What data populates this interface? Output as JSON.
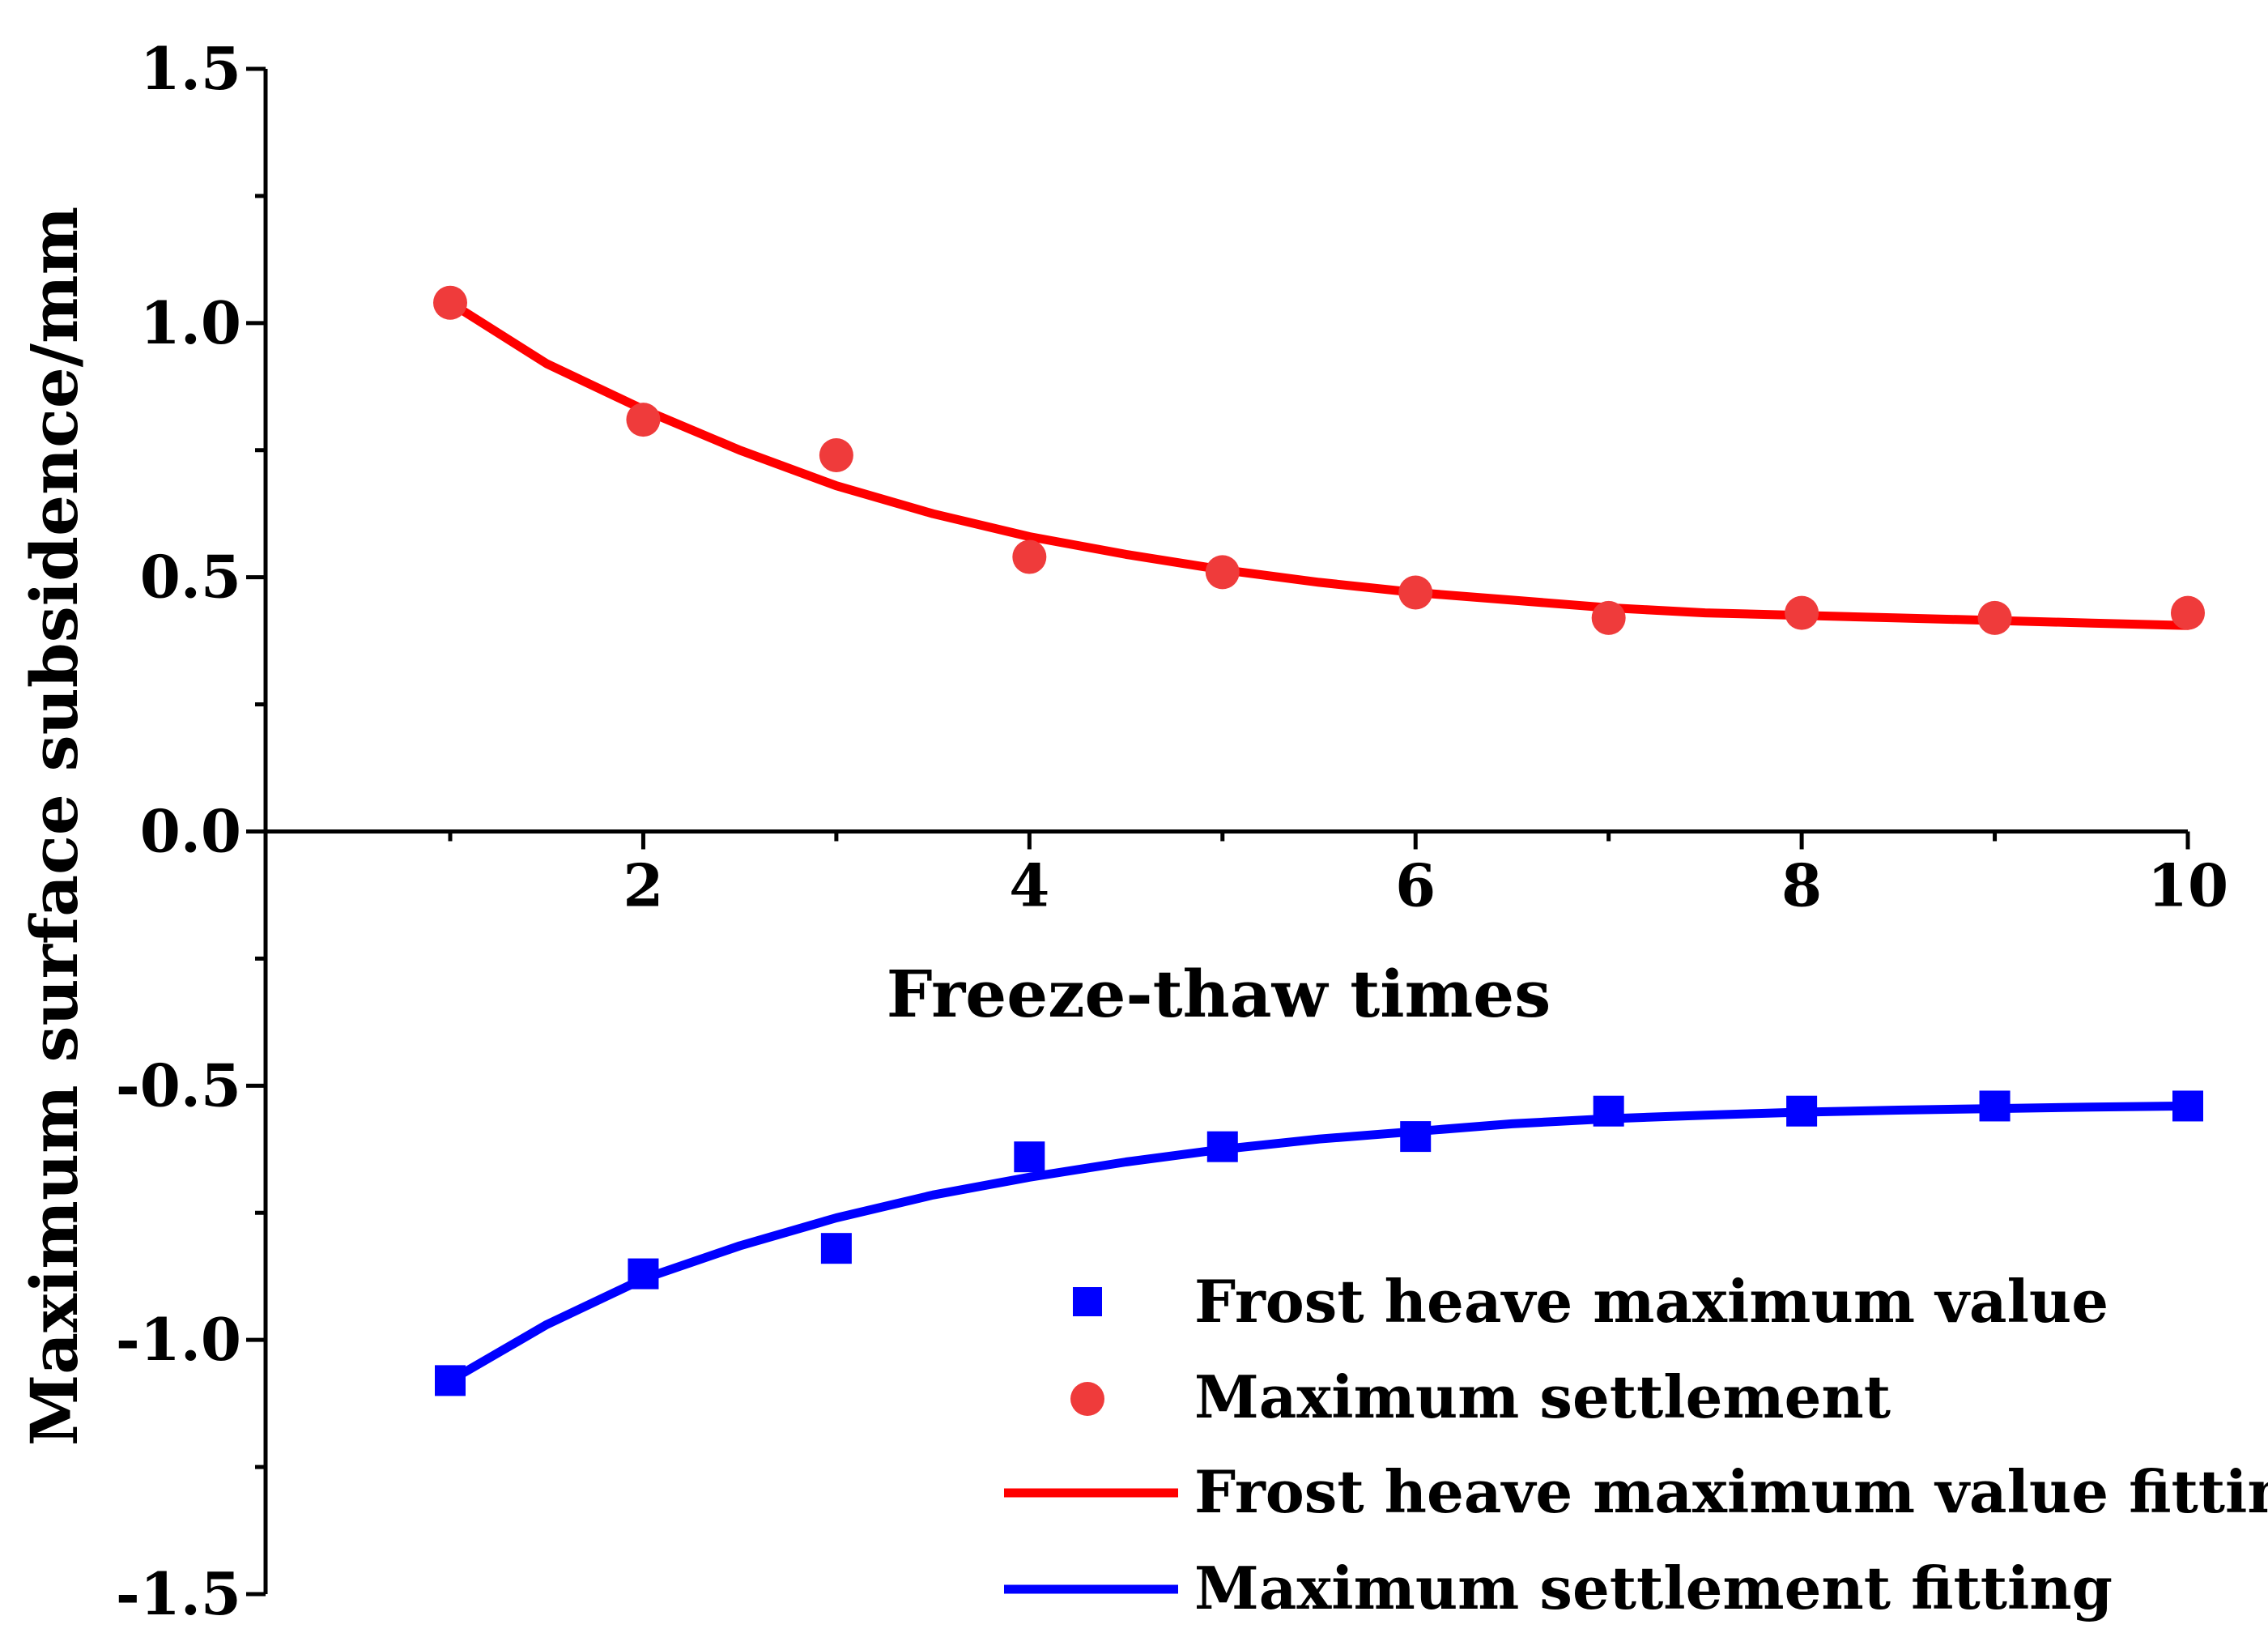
{
  "chart_data": {
    "type": "scatter",
    "xlabel": "Freeze-thaw times",
    "ylabel": "Maximum surface subsidence/mm",
    "xlim": [
      0.5,
      10
    ],
    "ylim": [
      -1.5,
      1.5
    ],
    "x_ticks": [
      2,
      4,
      6,
      8,
      10
    ],
    "x_tick_labels": [
      "2",
      "4",
      "6",
      "8",
      "10"
    ],
    "y_ticks": [
      1.5,
      1.0,
      0.5,
      0.0,
      -0.5,
      -1.0,
      -1.5
    ],
    "y_tick_labels": [
      "1.5",
      "1.0",
      "0.5",
      "0.0",
      "-0.5",
      "-1.0",
      "-1.5"
    ],
    "grid": false,
    "legend_position": "bottom-right",
    "series": [
      {
        "name": "Frost heave maximum value",
        "kind": "scatter",
        "marker": "square",
        "color": "#0000ff",
        "x": [
          1,
          2,
          3,
          4,
          5,
          6,
          7,
          8,
          9,
          10
        ],
        "values": [
          -1.08,
          -0.87,
          -0.82,
          -0.64,
          -0.62,
          -0.6,
          -0.55,
          -0.55,
          -0.54,
          -0.54
        ]
      },
      {
        "name": "Maximum settlement",
        "kind": "scatter",
        "marker": "circle",
        "color": "#ef3b3b",
        "x": [
          1,
          2,
          3,
          4,
          5,
          6,
          7,
          8,
          9,
          10
        ],
        "values": [
          1.04,
          0.81,
          0.74,
          0.54,
          0.51,
          0.47,
          0.42,
          0.43,
          0.42,
          0.43
        ]
      },
      {
        "name": "Frost heave maximum value fitting",
        "kind": "line",
        "color": "#ff0000",
        "x": [
          1,
          1.5,
          2,
          2.5,
          3,
          3.5,
          4,
          4.5,
          5,
          5.5,
          6,
          6.5,
          7,
          7.5,
          8,
          8.5,
          9,
          9.5,
          10
        ],
        "values": [
          1.04,
          0.92,
          0.83,
          0.75,
          0.68,
          0.625,
          0.58,
          0.545,
          0.515,
          0.49,
          0.47,
          0.455,
          0.44,
          0.43,
          0.425,
          0.42,
          0.415,
          0.41,
          0.405
        ]
      },
      {
        "name": "Maximum settlement fitting",
        "kind": "line",
        "color": "#0000ff",
        "x": [
          1,
          1.5,
          2,
          2.5,
          3,
          3.5,
          4,
          4.5,
          5,
          5.5,
          6,
          6.5,
          7,
          7.5,
          8,
          8.5,
          9,
          9.5,
          10
        ],
        "values": [
          -1.08,
          -0.97,
          -0.88,
          -0.815,
          -0.76,
          -0.715,
          -0.68,
          -0.65,
          -0.625,
          -0.605,
          -0.59,
          -0.575,
          -0.565,
          -0.558,
          -0.552,
          -0.548,
          -0.545,
          -0.542,
          -0.54
        ]
      }
    ]
  }
}
